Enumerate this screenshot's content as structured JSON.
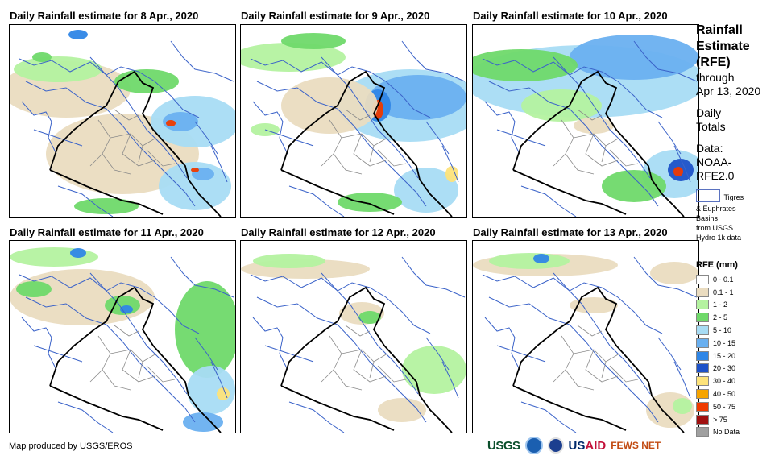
{
  "panels": [
    {
      "title": "Daily Rainfall estimate for 8 Apr., 2020"
    },
    {
      "title": "Daily Rainfall estimate for 9 Apr., 2020"
    },
    {
      "title": "Daily Rainfall estimate for 10 Apr., 2020"
    },
    {
      "title": "Daily Rainfall estimate for 11 Apr., 2020"
    },
    {
      "title": "Daily Rainfall estimate for 12 Apr., 2020"
    },
    {
      "title": "Daily Rainfall estimate for 13 Apr., 2020"
    }
  ],
  "sidebar": {
    "title_lines": [
      "Rainfall",
      "Estimate",
      "(RFE)"
    ],
    "through": "through",
    "date": "Apr 13, 2020",
    "daily": "Daily",
    "totals": "Totals",
    "data_label": "Data:",
    "data_src1": "NOAA-",
    "data_src2": "RFE2.0",
    "basin1": "Tigres",
    "basin2": "& Euphrates",
    "basin3": "Basins",
    "basin4": "from USGS",
    "basin5": "Hydro 1k data"
  },
  "legend": {
    "title": "RFE (mm)",
    "items": [
      {
        "label": "0 - 0.1",
        "color": "#ffffff"
      },
      {
        "label": "0.1 - 1",
        "color": "#eadcc0"
      },
      {
        "label": "1 - 2",
        "color": "#b4f2a0"
      },
      {
        "label": "2 - 5",
        "color": "#6fd96a"
      },
      {
        "label": "5 - 10",
        "color": "#a8dcf4"
      },
      {
        "label": "10 - 15",
        "color": "#6ab0f0"
      },
      {
        "label": "15 - 20",
        "color": "#2f86e6"
      },
      {
        "label": "20 - 30",
        "color": "#1e52c8"
      },
      {
        "label": "30 - 40",
        "color": "#fde37a"
      },
      {
        "label": "40 - 50",
        "color": "#f6a400"
      },
      {
        "label": "50 - 75",
        "color": "#ee3a00"
      },
      {
        "label": "> 75",
        "color": "#a01010"
      },
      {
        "label": "No Data",
        "color": "#a0a0a0"
      }
    ]
  },
  "footer": {
    "credit": "Map produced by USGS/EROS",
    "usgs": "USGS",
    "usaid_a": "US",
    "usaid_b": "AID",
    "fews": "FEWS NET"
  }
}
